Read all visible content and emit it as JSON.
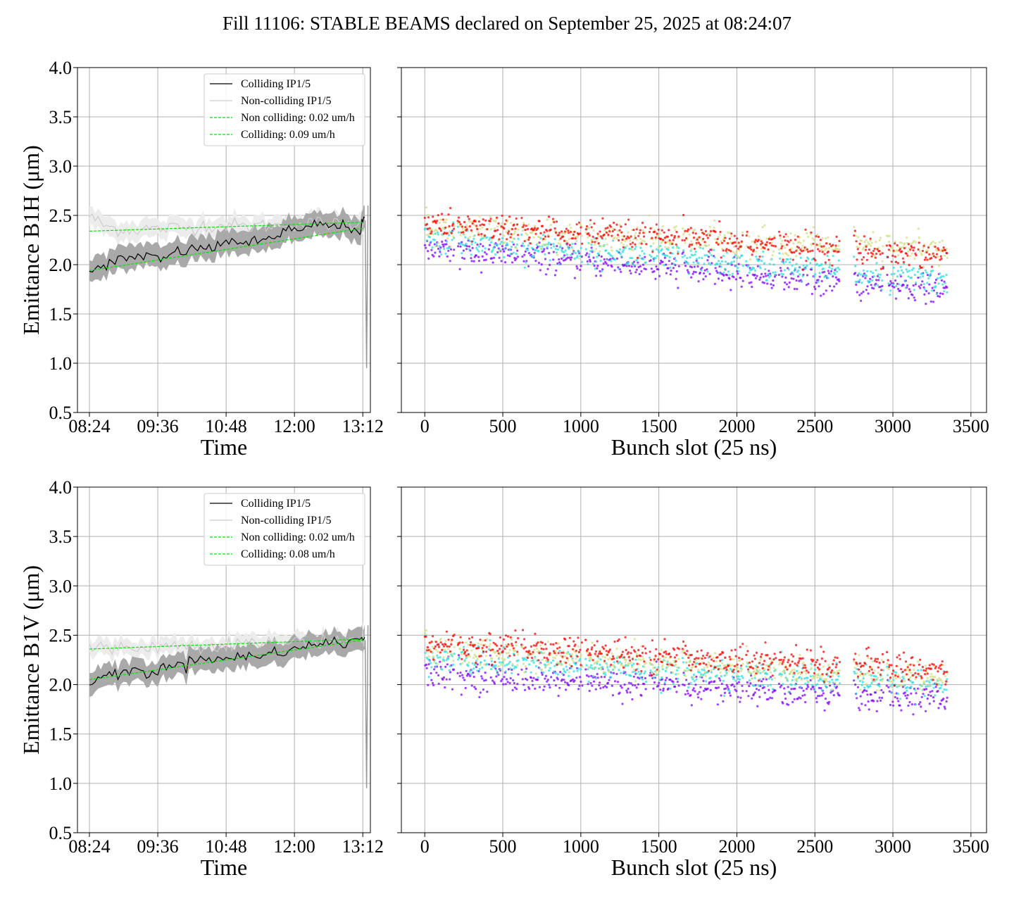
{
  "figure": {
    "title": "Fill 11106: STABLE BEAMS declared on September 25, 2025 at 08:24:07"
  },
  "colors": {
    "colliding": "#000000",
    "non_colliding": "#cccccc",
    "colliding_band": "#a9a9a9",
    "non_colliding_band": "#ececec",
    "fit": "#00e600",
    "grid": "#b0b0b0",
    "bunch_palette": [
      "#8000ff",
      "#2adddd",
      "#d4dd80",
      "#ff0000"
    ]
  },
  "chart_data": [
    {
      "type": "line",
      "panel": "top-left",
      "xlabel": "Time",
      "ylabel": "Emittance B1H (μm)",
      "xlim": [
        "08:24",
        "13:20"
      ],
      "ylim": [
        0.5,
        4.0
      ],
      "yticks": [
        "0.5",
        "1.0",
        "1.5",
        "2.0",
        "2.5",
        "3.0",
        "3.5",
        "4.0"
      ],
      "xticks": [
        "08:24",
        "09:36",
        "10:48",
        "12:00",
        "13:12"
      ],
      "grid": true,
      "legend_placement": "top-right",
      "legend": [
        "Colliding IP1/5",
        "Non-colliding IP1/5",
        "Non colliding: 0.02 um/h",
        "Colliding: 0.09 um/h"
      ],
      "series": [
        {
          "name": "Colliding IP1/5",
          "x": [
            "08:24",
            "08:39",
            "08:54",
            "09:09",
            "09:24",
            "09:39",
            "09:54",
            "10:09",
            "10:24",
            "10:39",
            "10:54",
            "11:09",
            "11:24",
            "11:39",
            "11:54",
            "12:09",
            "12:24",
            "12:39",
            "12:54",
            "13:09",
            "13:14"
          ],
          "y": [
            1.95,
            2.0,
            2.04,
            2.07,
            2.1,
            2.03,
            2.13,
            2.14,
            2.18,
            2.16,
            2.27,
            2.2,
            2.24,
            2.29,
            2.36,
            2.33,
            2.42,
            2.38,
            2.4,
            2.34,
            2.48
          ],
          "band": 0.12
        },
        {
          "name": "Non-colliding IP1/5",
          "x": [
            "08:24",
            "08:39",
            "08:54",
            "09:09",
            "09:24",
            "09:39",
            "09:54",
            "10:09",
            "10:24",
            "10:39",
            "10:54",
            "11:09",
            "11:24",
            "11:39",
            "11:54",
            "12:09",
            "12:24",
            "12:39",
            "12:54",
            "13:09",
            "13:14"
          ],
          "y": [
            2.5,
            2.4,
            2.36,
            2.35,
            2.37,
            2.36,
            2.38,
            2.37,
            2.4,
            2.39,
            2.41,
            2.38,
            2.4,
            2.39,
            2.42,
            2.4,
            2.43,
            2.41,
            2.42,
            2.4,
            2.44
          ],
          "band": 0.09
        },
        {
          "name": "Non colliding: 0.02 um/h",
          "x": [
            "08:24",
            "13:12"
          ],
          "y": [
            2.34,
            2.43
          ]
        },
        {
          "name": "Colliding: 0.09 um/h",
          "x": [
            "08:24",
            "13:12"
          ],
          "y": [
            1.94,
            2.37
          ]
        }
      ]
    },
    {
      "type": "scatter",
      "panel": "top-right",
      "xlabel": "Bunch slot (25 ns)",
      "xlim": [
        -150,
        3600
      ],
      "ylim": [
        0.5,
        4.0
      ],
      "xticks": [
        "0",
        "500",
        "1000",
        "1500",
        "2000",
        "2500",
        "3000",
        "3500"
      ],
      "grid": true,
      "trains_start": [
        0,
        210,
        410,
        620,
        820,
        1030,
        1230,
        1440,
        1650,
        1850,
        2060,
        2270,
        2470,
        2750,
        2960,
        3160
      ],
      "train_length": 190,
      "levels": [
        {
          "start": 2.15,
          "end": 1.75,
          "color": "#8000ff"
        },
        {
          "start": 2.25,
          "end": 1.85,
          "color": "#2adddd"
        },
        {
          "start": 2.35,
          "end": 2.15,
          "color": "#d4dd80"
        },
        {
          "start": 2.4,
          "end": 2.1,
          "color": "#ff0000"
        }
      ]
    },
    {
      "type": "line",
      "panel": "bottom-left",
      "xlabel": "Time",
      "ylabel": "Emittance B1V (μm)",
      "xlim": [
        "08:24",
        "13:20"
      ],
      "ylim": [
        0.5,
        4.0
      ],
      "yticks": [
        "0.5",
        "1.0",
        "1.5",
        "2.0",
        "2.5",
        "3.0",
        "3.5",
        "4.0"
      ],
      "xticks": [
        "08:24",
        "09:36",
        "10:48",
        "12:00",
        "13:12"
      ],
      "grid": true,
      "legend_placement": "top-right",
      "legend": [
        "Colliding IP1/5",
        "Non-colliding IP1/5",
        "Non colliding: 0.02 um/h",
        "Colliding: 0.08 um/h"
      ],
      "series": [
        {
          "name": "Colliding IP1/5",
          "x": [
            "08:24",
            "08:39",
            "08:54",
            "09:09",
            "09:24",
            "09:39",
            "09:54",
            "10:09",
            "10:24",
            "10:39",
            "10:54",
            "11:09",
            "11:24",
            "11:39",
            "11:54",
            "12:09",
            "12:24",
            "12:39",
            "12:54",
            "13:09",
            "13:14"
          ],
          "y": [
            2.0,
            2.1,
            2.1,
            2.15,
            2.12,
            2.15,
            2.2,
            2.22,
            2.3,
            2.25,
            2.26,
            2.3,
            2.28,
            2.33,
            2.35,
            2.38,
            2.4,
            2.44,
            2.42,
            2.46,
            2.48
          ],
          "band": 0.11
        },
        {
          "name": "Non-colliding IP1/5",
          "x": [
            "08:24",
            "08:39",
            "08:54",
            "09:09",
            "09:24",
            "09:39",
            "09:54",
            "10:09",
            "10:24",
            "10:39",
            "10:54",
            "11:09",
            "11:24",
            "11:39",
            "11:54",
            "12:09",
            "12:24",
            "12:39",
            "12:54",
            "13:09",
            "13:14"
          ],
          "y": [
            2.38,
            2.37,
            2.37,
            2.38,
            2.38,
            2.39,
            2.39,
            2.4,
            2.4,
            2.41,
            2.41,
            2.42,
            2.42,
            2.43,
            2.43,
            2.44,
            2.44,
            2.45,
            2.45,
            2.46,
            2.46
          ],
          "band": 0.08
        },
        {
          "name": "Non colliding: 0.02 um/h",
          "x": [
            "08:24",
            "13:12"
          ],
          "y": [
            2.36,
            2.46
          ]
        },
        {
          "name": "Colliding: 0.08 um/h",
          "x": [
            "08:24",
            "13:12"
          ],
          "y": [
            2.05,
            2.45
          ]
        }
      ]
    },
    {
      "type": "scatter",
      "panel": "bottom-right",
      "xlabel": "Bunch slot (25 ns)",
      "xlim": [
        -150,
        3600
      ],
      "ylim": [
        0.5,
        4.0
      ],
      "xticks": [
        "0",
        "500",
        "1000",
        "1500",
        "2000",
        "2500",
        "3000",
        "3500"
      ],
      "grid": true,
      "trains_start": [
        0,
        210,
        410,
        620,
        820,
        1030,
        1230,
        1440,
        1650,
        1850,
        2060,
        2270,
        2470,
        2750,
        2960,
        3160
      ],
      "train_length": 190,
      "levels": [
        {
          "start": 2.1,
          "end": 1.85,
          "color": "#8000ff"
        },
        {
          "start": 2.25,
          "end": 2.0,
          "color": "#2adddd"
        },
        {
          "start": 2.35,
          "end": 2.05,
          "color": "#d4dd80"
        },
        {
          "start": 2.4,
          "end": 2.15,
          "color": "#ff0000"
        }
      ]
    }
  ]
}
